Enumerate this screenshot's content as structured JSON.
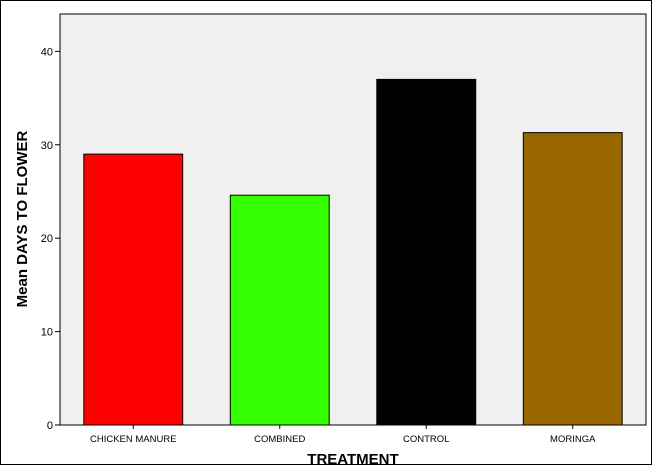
{
  "chart_data": {
    "type": "bar",
    "title": "",
    "xlabel": "TREATMENT",
    "ylabel": "Mean DAYS TO FLOWER",
    "categories": [
      "CHICKEN MANURE",
      "COMBINED",
      "CONTROL",
      "MORINGA"
    ],
    "values": [
      29.0,
      24.6,
      37.0,
      31.3
    ],
    "colors": [
      "#ff0000",
      "#33ff00",
      "#000000",
      "#996600"
    ],
    "ylim": [
      0,
      44
    ],
    "yticks": [
      0,
      10,
      20,
      30,
      40
    ],
    "grid": false,
    "plot_background": "#f0f0f0"
  }
}
